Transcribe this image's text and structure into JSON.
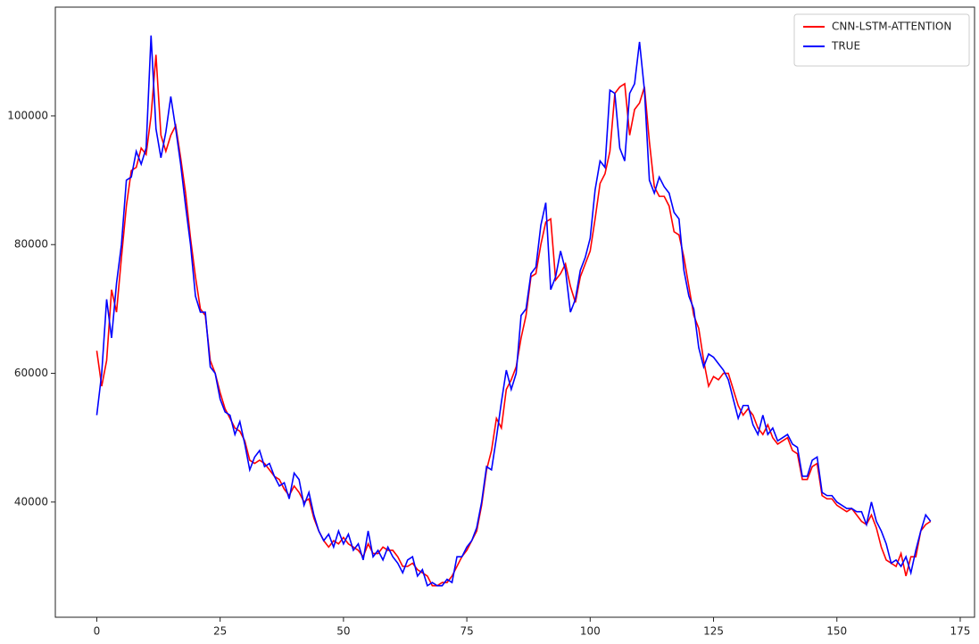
{
  "chart_data": {
    "type": "line",
    "x": [
      0,
      1,
      2,
      3,
      4,
      5,
      6,
      7,
      8,
      9,
      10,
      11,
      12,
      13,
      14,
      15,
      16,
      17,
      18,
      19,
      20,
      21,
      22,
      23,
      24,
      25,
      26,
      27,
      28,
      29,
      30,
      31,
      32,
      33,
      34,
      35,
      36,
      37,
      38,
      39,
      40,
      41,
      42,
      43,
      44,
      45,
      46,
      47,
      48,
      49,
      50,
      51,
      52,
      53,
      54,
      55,
      56,
      57,
      58,
      59,
      60,
      61,
      62,
      63,
      64,
      65,
      66,
      67,
      68,
      69,
      70,
      71,
      72,
      73,
      74,
      75,
      76,
      77,
      78,
      79,
      80,
      81,
      82,
      83,
      84,
      85,
      86,
      87,
      88,
      89,
      90,
      91,
      92,
      93,
      94,
      95,
      96,
      97,
      98,
      99,
      100,
      101,
      102,
      103,
      104,
      105,
      106,
      107,
      108,
      109,
      110,
      111,
      112,
      113,
      114,
      115,
      116,
      117,
      118,
      119,
      120,
      121,
      122,
      123,
      124,
      125,
      126,
      127,
      128,
      129,
      130,
      131,
      132,
      133,
      134,
      135,
      136,
      137,
      138,
      139,
      140,
      141,
      142,
      143,
      144,
      145,
      146,
      147,
      148,
      149,
      150,
      151,
      152,
      153,
      154,
      155,
      156,
      157,
      158,
      159,
      160,
      161,
      162,
      163,
      164,
      165,
      166,
      167,
      168,
      169
    ],
    "series": [
      {
        "name": "CNN-LSTM-ATTENTION",
        "color": "#ff0000",
        "values": [
          63500,
          58000,
          62000,
          73000,
          69500,
          78000,
          86000,
          91500,
          92000,
          95000,
          94000,
          100000,
          109500,
          97000,
          94500,
          97000,
          98500,
          93500,
          88000,
          81000,
          75000,
          70000,
          69000,
          62000,
          60000,
          57000,
          54500,
          53000,
          51500,
          51000,
          49500,
          46500,
          46000,
          46500,
          46000,
          45000,
          44000,
          43500,
          42000,
          41000,
          42500,
          41500,
          40000,
          40500,
          37500,
          35500,
          34000,
          33000,
          34000,
          33500,
          34500,
          33500,
          33000,
          32500,
          31500,
          33500,
          32000,
          32000,
          33000,
          32500,
          32500,
          31500,
          30000,
          30000,
          30500,
          29500,
          29000,
          28500,
          27000,
          27000,
          27500,
          27500,
          28500,
          30000,
          31500,
          32500,
          34000,
          35500,
          39500,
          45000,
          48000,
          53000,
          51500,
          57500,
          59000,
          61000,
          65500,
          69000,
          75000,
          75500,
          80000,
          83500,
          84000,
          74500,
          75500,
          77000,
          73500,
          71000,
          75000,
          77000,
          79000,
          84000,
          89500,
          91000,
          94500,
          103500,
          104500,
          105000,
          97000,
          101000,
          102000,
          104500,
          96000,
          89000,
          87500,
          87500,
          86000,
          82000,
          81500,
          78000,
          73500,
          69000,
          67000,
          62000,
          58000,
          59500,
          59000,
          60000,
          60000,
          57500,
          55000,
          53500,
          54500,
          53500,
          51500,
          50500,
          52000,
          50000,
          49000,
          49500,
          50000,
          48000,
          47500,
          43500,
          43500,
          45500,
          46000,
          41000,
          40500,
          40500,
          39500,
          39000,
          38500,
          39000,
          38000,
          37000,
          36500,
          38000,
          36000,
          33000,
          31000,
          30500,
          30000,
          32000,
          28500,
          31500,
          31500,
          35500,
          36500,
          37000
        ]
      },
      {
        "name": "TRUE",
        "color": "#0000ff",
        "values": [
          53500,
          60000,
          71500,
          65500,
          74000,
          80000,
          90000,
          90500,
          94500,
          92500,
          95000,
          112500,
          98000,
          93500,
          97500,
          103000,
          98000,
          92500,
          86000,
          80000,
          72000,
          69500,
          69500,
          61000,
          60000,
          56000,
          54000,
          53500,
          50500,
          52500,
          49000,
          45000,
          47000,
          48000,
          45500,
          46000,
          44000,
          42500,
          43000,
          40500,
          44500,
          43500,
          39500,
          41500,
          38000,
          35500,
          34000,
          35000,
          33000,
          35500,
          33500,
          35000,
          32500,
          33500,
          31000,
          35500,
          31500,
          32500,
          31000,
          33000,
          31500,
          30500,
          29000,
          31000,
          31500,
          28500,
          29500,
          27000,
          27500,
          27000,
          27000,
          28000,
          27500,
          31500,
          31500,
          33000,
          34000,
          36000,
          40000,
          45500,
          45000,
          50000,
          55500,
          60500,
          57500,
          60000,
          69000,
          70000,
          75500,
          76500,
          83000,
          86500,
          73000,
          75000,
          79000,
          76000,
          69500,
          71500,
          76000,
          78000,
          81000,
          88500,
          93000,
          92000,
          104000,
          103500,
          95000,
          93000,
          103500,
          105000,
          111500,
          104000,
          90000,
          88000,
          90500,
          89000,
          88000,
          85000,
          84000,
          76000,
          72000,
          70000,
          64000,
          61000,
          63000,
          62500,
          61500,
          60500,
          59000,
          56000,
          53000,
          55000,
          55000,
          52000,
          50500,
          53500,
          50500,
          51500,
          49500,
          50000,
          50500,
          49000,
          48500,
          44000,
          44000,
          46500,
          47000,
          41500,
          41000,
          41000,
          40000,
          39500,
          39000,
          39000,
          38500,
          38500,
          36500,
          40000,
          37000,
          35500,
          33500,
          30500,
          31000,
          30000,
          31500,
          29000,
          32500,
          35500,
          38000,
          37000
        ]
      }
    ],
    "xlim": [
      -8.4,
      177.9
    ],
    "ylim": [
      22100,
      116900
    ],
    "xticks": [
      0,
      25,
      50,
      75,
      100,
      125,
      150,
      175
    ],
    "yticks": [
      40000,
      60000,
      80000,
      100000
    ],
    "legend": "upper right"
  }
}
